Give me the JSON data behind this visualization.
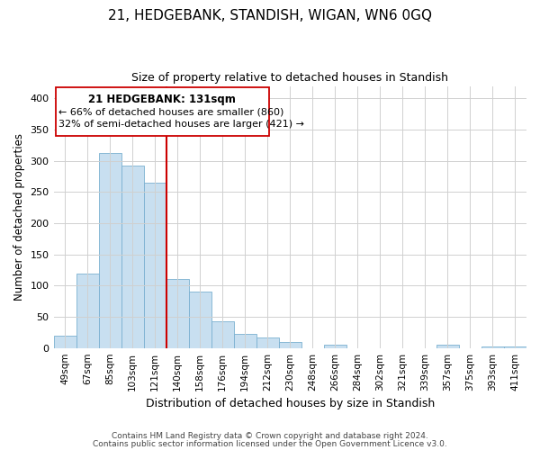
{
  "title": "21, HEDGEBANK, STANDISH, WIGAN, WN6 0GQ",
  "subtitle": "Size of property relative to detached houses in Standish",
  "xlabel": "Distribution of detached houses by size in Standish",
  "ylabel": "Number of detached properties",
  "bar_color": "#c8dff0",
  "bar_edge_color": "#7ab0d0",
  "categories": [
    "49sqm",
    "67sqm",
    "85sqm",
    "103sqm",
    "121sqm",
    "140sqm",
    "158sqm",
    "176sqm",
    "194sqm",
    "212sqm",
    "230sqm",
    "248sqm",
    "266sqm",
    "284sqm",
    "302sqm",
    "321sqm",
    "339sqm",
    "357sqm",
    "375sqm",
    "393sqm",
    "411sqm"
  ],
  "values": [
    20,
    120,
    313,
    292,
    265,
    110,
    90,
    43,
    22,
    17,
    9,
    0,
    5,
    0,
    0,
    0,
    0,
    5,
    0,
    3,
    2
  ],
  "vline_color": "#cc0000",
  "vline_x": 4.5,
  "annotation_title": "21 HEDGEBANK: 131sqm",
  "annotation_line1": "← 66% of detached houses are smaller (860)",
  "annotation_line2": "32% of semi-detached houses are larger (421) →",
  "ylim": [
    0,
    420
  ],
  "yticks": [
    0,
    50,
    100,
    150,
    200,
    250,
    300,
    350,
    400
  ],
  "footnote1": "Contains HM Land Registry data © Crown copyright and database right 2024.",
  "footnote2": "Contains public sector information licensed under the Open Government Licence v3.0.",
  "bg_color": "#ffffff",
  "grid_color": "#d0d0d0"
}
